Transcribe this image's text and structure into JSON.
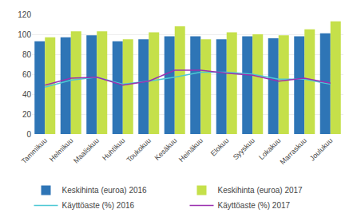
{
  "chart_data": {
    "type": "bar",
    "categories": [
      "Tammikuu",
      "Helmikuu",
      "Maaliskuu",
      "Huhtikuu",
      "Toukokuu",
      "Kesäkuu",
      "Heinäkuu",
      "Elokuu",
      "Syyskuu",
      "Lokakuu",
      "Marraskuu",
      "Joulukuu"
    ],
    "series": [
      {
        "name": "Keskihinta (euroa) 2016",
        "type": "bar",
        "color": "#2e75b6",
        "values": [
          93,
          97,
          99,
          93,
          95,
          98,
          98,
          95,
          98,
          96,
          98,
          101
        ]
      },
      {
        "name": "Keskihinta (euroa) 2017",
        "type": "bar",
        "color": "#c5e04a",
        "values": [
          97,
          103,
          103,
          95,
          102,
          108,
          95,
          102,
          100,
          99,
          105,
          113
        ]
      },
      {
        "name": "Käyttöaste (%) 2016",
        "type": "line",
        "color": "#4dc8d4",
        "values": [
          47,
          54,
          57,
          50,
          53,
          57,
          62,
          62,
          60,
          55,
          55,
          50
        ]
      },
      {
        "name": "Käyttöaste (%) 2017",
        "type": "line",
        "color": "#9b30b0",
        "values": [
          49,
          56,
          57,
          49,
          53,
          64,
          64,
          61,
          59,
          53,
          56,
          51
        ]
      }
    ],
    "ylim": [
      0,
      120
    ],
    "yticks": [
      0,
      20,
      40,
      60,
      80,
      100,
      120
    ],
    "grid": true,
    "legend": "bottom"
  }
}
